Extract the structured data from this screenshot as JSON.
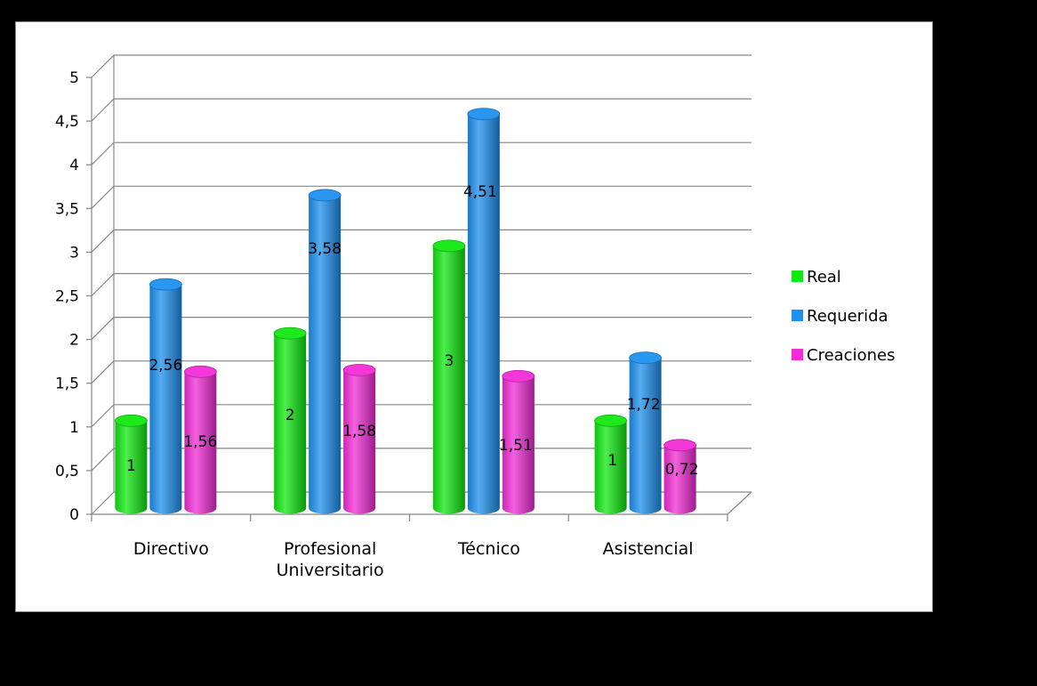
{
  "chart_data": {
    "type": "bar",
    "title": "",
    "xlabel": "",
    "ylabel": "",
    "ylim": [
      0,
      5
    ],
    "yticks": [
      "0",
      "0,5",
      "1",
      "1,5",
      "2",
      "2,5",
      "3",
      "3,5",
      "4",
      "4,5",
      "5"
    ],
    "categories": [
      [
        "Directivo"
      ],
      [
        "Profesional",
        "Universitario"
      ],
      [
        "Técnico"
      ],
      [
        "Asistencial"
      ]
    ],
    "series": [
      {
        "name": "Real",
        "color": "#11e811",
        "values": [
          1,
          2,
          3,
          1
        ],
        "labels": [
          "1",
          "2",
          "3",
          "1"
        ]
      },
      {
        "name": "Requerida",
        "color": "#1e90ee",
        "values": [
          2.56,
          3.58,
          4.51,
          1.72
        ],
        "labels": [
          "2,56",
          "3,58",
          "4,51",
          "1,72"
        ]
      },
      {
        "name": "Creaciones",
        "color": "#f22cd6",
        "values": [
          1.56,
          1.58,
          1.51,
          0.72
        ],
        "labels": [
          "1,56",
          "1,58",
          "1,51",
          "0,72"
        ]
      }
    ],
    "grid": true,
    "legend": "right",
    "style": "3d-cylinder"
  }
}
